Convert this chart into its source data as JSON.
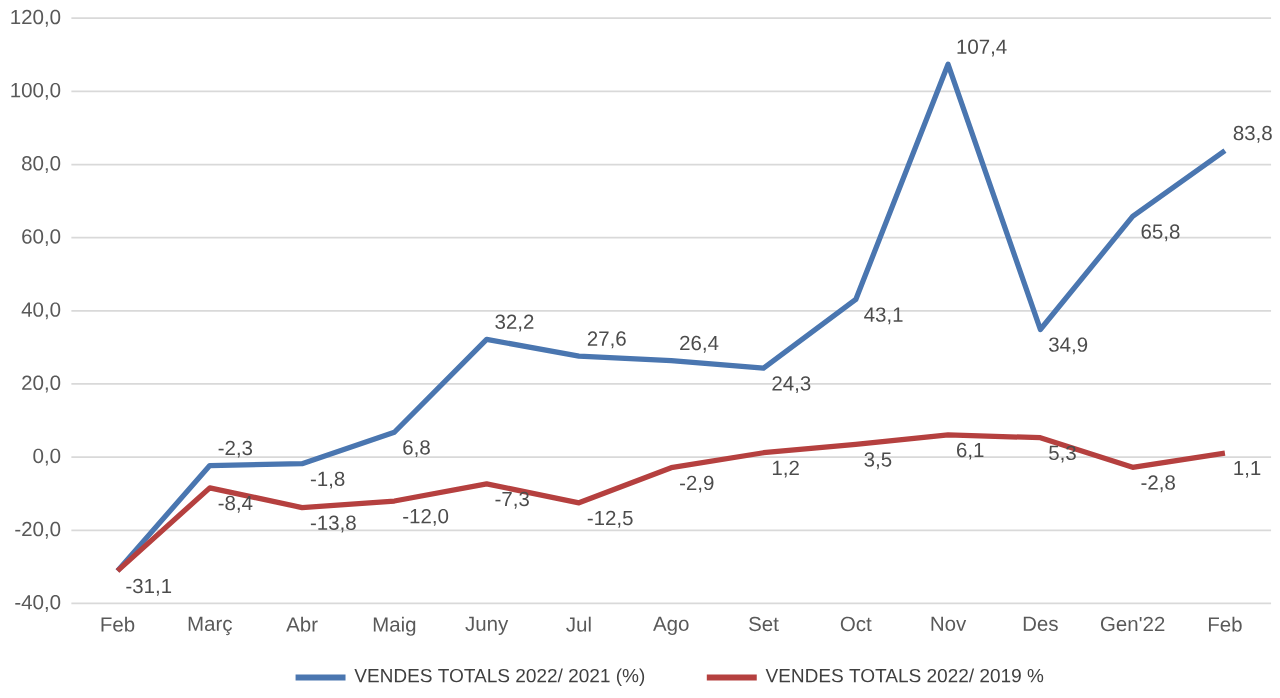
{
  "chart_data": {
    "type": "line",
    "categories": [
      "Feb",
      "Març",
      "Abr",
      "Maig",
      "Juny",
      "Jul",
      "Ago",
      "Set",
      "Oct",
      "Nov",
      "Des",
      "Gen'22",
      "Feb"
    ],
    "series": [
      {
        "name": "VENDES TOTALS 2022/ 2021 (%)",
        "color": "#4a76b0",
        "values": [
          -31.1,
          -2.3,
          -1.8,
          6.8,
          32.2,
          27.6,
          26.4,
          24.3,
          43.1,
          107.4,
          34.9,
          65.8,
          83.8
        ],
        "value_labels": [
          "-31,1",
          "-2,3",
          "-1,8",
          "6,8",
          "32,2",
          "27,6",
          "26,4",
          "24,3",
          "43,1",
          "107,4",
          "34,9",
          "65,8",
          "83,8"
        ]
      },
      {
        "name": "VENDES TOTALS 2022/ 2019 %",
        "color": "#b5403f",
        "values": [
          -31.1,
          -8.4,
          -13.8,
          -12.0,
          -7.3,
          -12.5,
          -2.9,
          1.2,
          3.5,
          6.1,
          5.3,
          -2.8,
          1.1
        ],
        "value_labels": [
          null,
          "-8,4",
          "-13,8",
          "-12,0",
          "-7,3",
          "-12,5",
          "-2,9",
          "1,2",
          "3,5",
          "6,1",
          "5,3",
          "-2,8",
          "1,1"
        ]
      }
    ],
    "ylim": [
      -40,
      120
    ],
    "yticks": [
      {
        "value": -40,
        "label": "-40,0"
      },
      {
        "value": -20,
        "label": "-20,0"
      },
      {
        "value": 0,
        "label": "0,0"
      },
      {
        "value": 20,
        "label": "20,0"
      },
      {
        "value": 40,
        "label": "40,0"
      },
      {
        "value": 60,
        "label": "60,0"
      },
      {
        "value": 80,
        "label": "80,0"
      },
      {
        "value": 100,
        "label": "100,0"
      },
      {
        "value": 120,
        "label": "120,0"
      }
    ],
    "grid": "y",
    "legend": "bottom",
    "marker": "none",
    "line_style": "solid"
  }
}
